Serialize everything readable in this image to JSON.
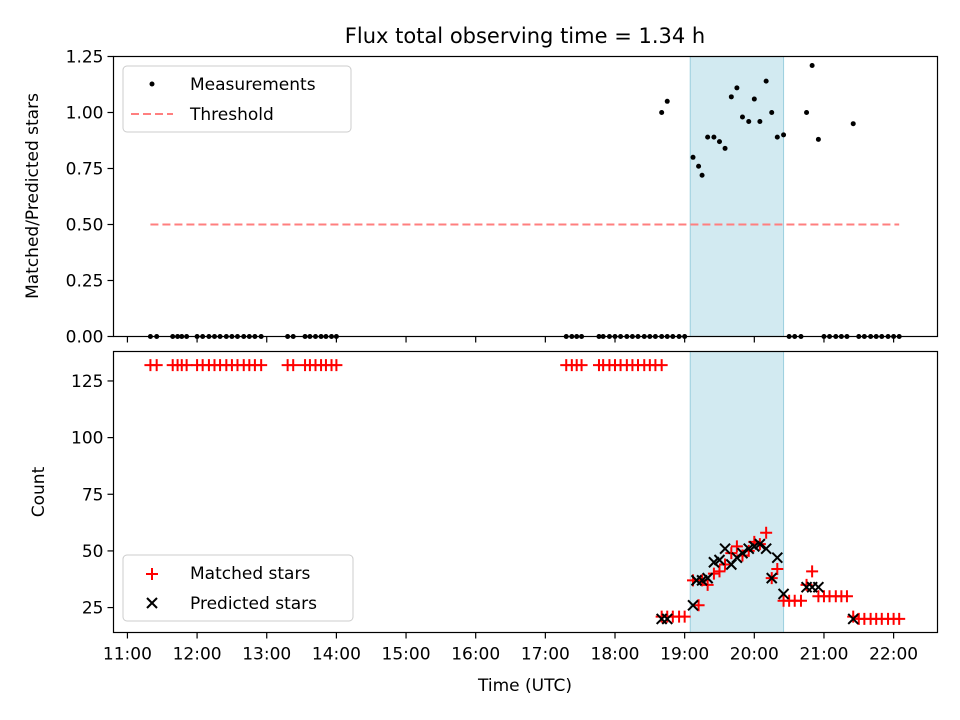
{
  "chart_data": {
    "type": "scatter",
    "title": "Flux total observing time = 1.34 h",
    "xlabel": "Time (UTC)",
    "xlim": [
      10.8,
      22.63
    ],
    "xticks": [
      11,
      12,
      13,
      14,
      15,
      16,
      17,
      18,
      19,
      20,
      21,
      22
    ],
    "xtick_labels": [
      "11:00",
      "12:00",
      "13:00",
      "14:00",
      "15:00",
      "16:00",
      "17:00",
      "18:00",
      "19:00",
      "20:00",
      "21:00",
      "22:00"
    ],
    "highlight_span": {
      "x0": 19.08,
      "x1": 20.42,
      "color": "#add8e6"
    },
    "colors": {
      "measurements": "#000000",
      "threshold": "#ff7f7f",
      "matched": "#ff0000",
      "predicted": "#000000",
      "highlight": "#add8e6"
    },
    "panels": [
      {
        "id": "top",
        "ylabel": "Matched/Predicted stars",
        "ylim": [
          0,
          1.25
        ],
        "yticks": [
          0,
          0.25,
          0.5,
          0.75,
          1.0,
          1.25
        ],
        "ytick_labels": [
          "0.00",
          "0.25",
          "0.50",
          "0.75",
          "1.00",
          "1.25"
        ],
        "legend": {
          "position": "upper-left",
          "entries": [
            "Measurements",
            "Threshold"
          ]
        },
        "series": [
          {
            "name": "Measurements",
            "kind": "points",
            "x": [
              11.33,
              11.42,
              11.65,
              11.72,
              11.78,
              11.85,
              12.0,
              12.08,
              12.17,
              12.25,
              12.33,
              12.42,
              12.5,
              12.58,
              12.67,
              12.75,
              12.83,
              12.92,
              13.3,
              13.38,
              13.55,
              13.62,
              13.7,
              13.78,
              13.85,
              13.93,
              14.0,
              17.3,
              17.38,
              17.45,
              17.52,
              17.77,
              17.83,
              17.92,
              18.0,
              18.08,
              18.17,
              18.25,
              18.33,
              18.42,
              18.5,
              18.58,
              18.67,
              18.75,
              18.83,
              18.92,
              19.0,
              18.67,
              18.75,
              19.12,
              19.2,
              19.25,
              19.33,
              19.42,
              19.5,
              19.58,
              19.67,
              19.75,
              19.83,
              19.92,
              20.0,
              20.08,
              20.17,
              20.25,
              20.33,
              20.42,
              20.5,
              20.58,
              20.67,
              20.75,
              20.83,
              20.92,
              21.0,
              21.08,
              21.17,
              21.25,
              21.33,
              21.42,
              21.5,
              21.58,
              21.67,
              21.75,
              21.83,
              21.92,
              22.0,
              22.08
            ],
            "y": [
              0,
              0,
              0,
              0,
              0,
              0,
              0,
              0,
              0,
              0,
              0,
              0,
              0,
              0,
              0,
              0,
              0,
              0,
              0,
              0,
              0,
              0,
              0,
              0,
              0,
              0,
              0,
              0,
              0,
              0,
              0,
              0,
              0,
              0,
              0,
              0,
              0,
              0,
              0,
              0,
              0,
              0,
              0,
              0,
              0,
              0,
              0,
              1.0,
              1.05,
              0.8,
              0.76,
              0.72,
              0.89,
              0.89,
              0.87,
              0.84,
              1.07,
              1.11,
              0.98,
              0.96,
              1.06,
              0.96,
              1.14,
              1.0,
              0.89,
              0.9,
              0,
              0,
              0,
              1.0,
              1.21,
              0.88,
              0,
              0,
              0,
              0,
              0,
              0.95,
              0,
              0,
              0,
              0,
              0,
              0,
              0,
              0
            ]
          },
          {
            "name": "Threshold",
            "kind": "dashed-line",
            "x": [
              11.33,
              22.08
            ],
            "y": [
              0.5,
              0.5
            ]
          }
        ]
      },
      {
        "id": "bottom",
        "ylabel": "Count",
        "ylim": [
          14,
          138
        ],
        "yticks": [
          25,
          50,
          75,
          100,
          125
        ],
        "ytick_labels": [
          "25",
          "50",
          "75",
          "100",
          "125"
        ],
        "legend": {
          "position": "lower-left",
          "entries": [
            "Matched stars",
            "Predicted stars"
          ]
        },
        "series": [
          {
            "name": "Matched stars",
            "kind": "plus",
            "x": [
              11.33,
              11.42,
              11.65,
              11.72,
              11.78,
              11.85,
              12.0,
              12.08,
              12.17,
              12.25,
              12.33,
              12.42,
              12.5,
              12.58,
              12.67,
              12.75,
              12.83,
              12.92,
              13.3,
              13.38,
              13.55,
              13.62,
              13.7,
              13.78,
              13.85,
              13.93,
              14.0,
              17.3,
              17.38,
              17.45,
              17.52,
              17.77,
              17.83,
              17.92,
              18.0,
              18.08,
              18.17,
              18.25,
              18.33,
              18.42,
              18.5,
              18.58,
              18.67,
              18.67,
              18.75,
              18.83,
              18.92,
              19.0,
              19.12,
              19.2,
              19.25,
              19.33,
              19.42,
              19.5,
              19.58,
              19.67,
              19.75,
              19.83,
              19.92,
              20.0,
              20.08,
              20.17,
              20.25,
              20.33,
              20.42,
              20.5,
              20.58,
              20.67,
              20.75,
              20.83,
              20.92,
              21.0,
              21.08,
              21.17,
              21.25,
              21.33,
              21.42,
              21.5,
              21.58,
              21.67,
              21.75,
              21.83,
              21.92,
              22.0,
              22.08
            ],
            "y": [
              132,
              132,
              132,
              132,
              132,
              132,
              132,
              132,
              132,
              132,
              132,
              132,
              132,
              132,
              132,
              132,
              132,
              132,
              132,
              132,
              132,
              132,
              132,
              132,
              132,
              132,
              132,
              132,
              132,
              132,
              132,
              132,
              132,
              132,
              132,
              132,
              132,
              132,
              132,
              132,
              132,
              132,
              132,
              21,
              21,
              21,
              21,
              21,
              37,
              26,
              37,
              35,
              40,
              41,
              44,
              49,
              52,
              48,
              50,
              54,
              53,
              58,
              38,
              42,
              28,
              28,
              28,
              28,
              35,
              41,
              30,
              30,
              30,
              30,
              30,
              30,
              21,
              20,
              20,
              20,
              20,
              20,
              20,
              20,
              20
            ]
          },
          {
            "name": "Predicted stars",
            "kind": "x",
            "x": [
              18.67,
              18.75,
              19.12,
              19.17,
              19.25,
              19.33,
              19.42,
              19.5,
              19.58,
              19.67,
              19.75,
              19.83,
              19.92,
              20.0,
              20.08,
              20.17,
              20.25,
              20.33,
              20.42,
              20.75,
              20.83,
              20.92,
              21.42
            ],
            "y": [
              20,
              20,
              26,
              37,
              37,
              38,
              45,
              46,
              51,
              44,
              47,
              49,
              51,
              52,
              53,
              51,
              38,
              47,
              31,
              34,
              34,
              34,
              20
            ]
          }
        ]
      }
    ]
  }
}
